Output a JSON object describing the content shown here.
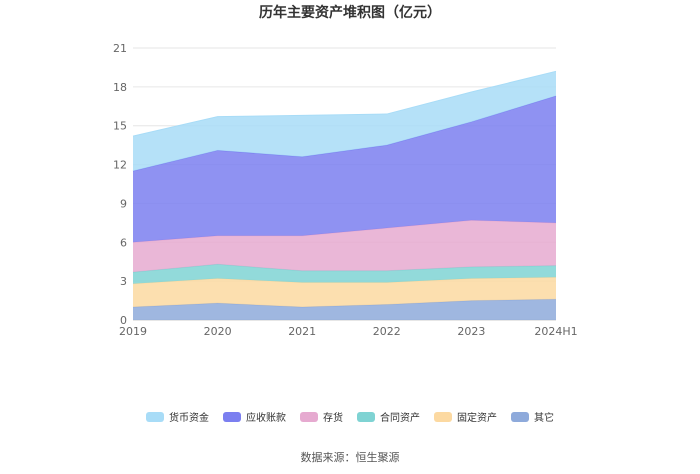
{
  "chart_data": {
    "type": "area",
    "stacked": true,
    "title": "历年主要资产堆积图（亿元）",
    "x": [
      "2019",
      "2020",
      "2021",
      "2022",
      "2023",
      "2024H1"
    ],
    "ylim": [
      0,
      21
    ],
    "yticks": [
      0,
      3,
      6,
      9,
      12,
      15,
      18,
      21
    ],
    "grid": true,
    "legend_position": "bottom",
    "series": [
      {
        "name": "其它",
        "color": "#8eaadb",
        "values": [
          1.0,
          1.3,
          1.0,
          1.2,
          1.5,
          1.6
        ]
      },
      {
        "name": "固定资产",
        "color": "#fcd9a1",
        "values": [
          1.8,
          1.9,
          1.9,
          1.7,
          1.7,
          1.7
        ]
      },
      {
        "name": "合同资产",
        "color": "#7fd3d3",
        "values": [
          0.9,
          1.1,
          0.9,
          0.9,
          0.9,
          0.9
        ]
      },
      {
        "name": "存货",
        "color": "#e6aad0",
        "values": [
          2.3,
          2.2,
          2.7,
          3.3,
          3.6,
          3.3
        ]
      },
      {
        "name": "应收账款",
        "color": "#7b7ff0",
        "values": [
          5.5,
          6.6,
          6.1,
          6.4,
          7.6,
          9.8
        ]
      },
      {
        "name": "货币资金",
        "color": "#a8dcf7",
        "values": [
          2.7,
          2.6,
          3.2,
          2.4,
          2.3,
          1.9
        ]
      }
    ]
  },
  "source_text": "数据来源：恒生聚源"
}
